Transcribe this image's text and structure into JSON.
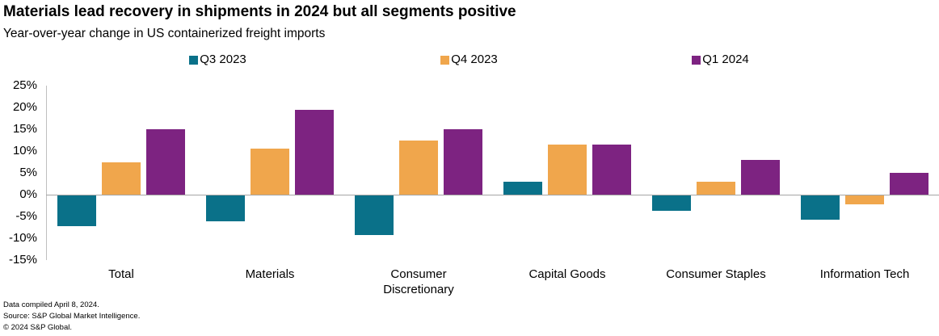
{
  "header": {
    "title": "Materials lead recovery in shipments in 2024 but all segments positive",
    "subtitle": "Year-over-year change in US containerized freight imports"
  },
  "chart_data": {
    "type": "bar",
    "title": "Materials lead recovery in shipments in 2024 but all segments positive",
    "subtitle": "Year-over-year change in US containerized freight imports",
    "categories": [
      "Total",
      "Materials",
      "Consumer Discretionary",
      "Capital Goods",
      "Consumer Staples",
      "Information Tech"
    ],
    "series": [
      {
        "name": "Q3 2023",
        "color": "#0A7189",
        "values": [
          -7,
          -6,
          -9,
          3,
          -3.5,
          -5.5
        ]
      },
      {
        "name": "Q4 2023",
        "color": "#F0A64C",
        "values": [
          7.5,
          10.5,
          12.5,
          11.5,
          3,
          -2
        ]
      },
      {
        "name": "Q1 2024",
        "color": "#7D2381",
        "values": [
          15,
          19.5,
          15,
          11.5,
          8,
          5
        ]
      }
    ],
    "ylim": [
      -15,
      25
    ],
    "yticks": [
      25,
      20,
      15,
      10,
      5,
      0,
      -5,
      -10,
      -15
    ],
    "ytick_labels": [
      "25%",
      "20%",
      "15%",
      "10%",
      "5%",
      "0%",
      "-5%",
      "-10%",
      "-15%"
    ],
    "unit": "%",
    "legend_position": "top",
    "grid": "zero-line-only",
    "axis_color": "#BFBFBF",
    "zero_line_color": "#A6A6A6"
  },
  "footer": {
    "line1": "Data compiled April 8, 2024.",
    "line2": "Source: S&P Global Market Intelligence.",
    "line3": "© 2024 S&P Global."
  }
}
